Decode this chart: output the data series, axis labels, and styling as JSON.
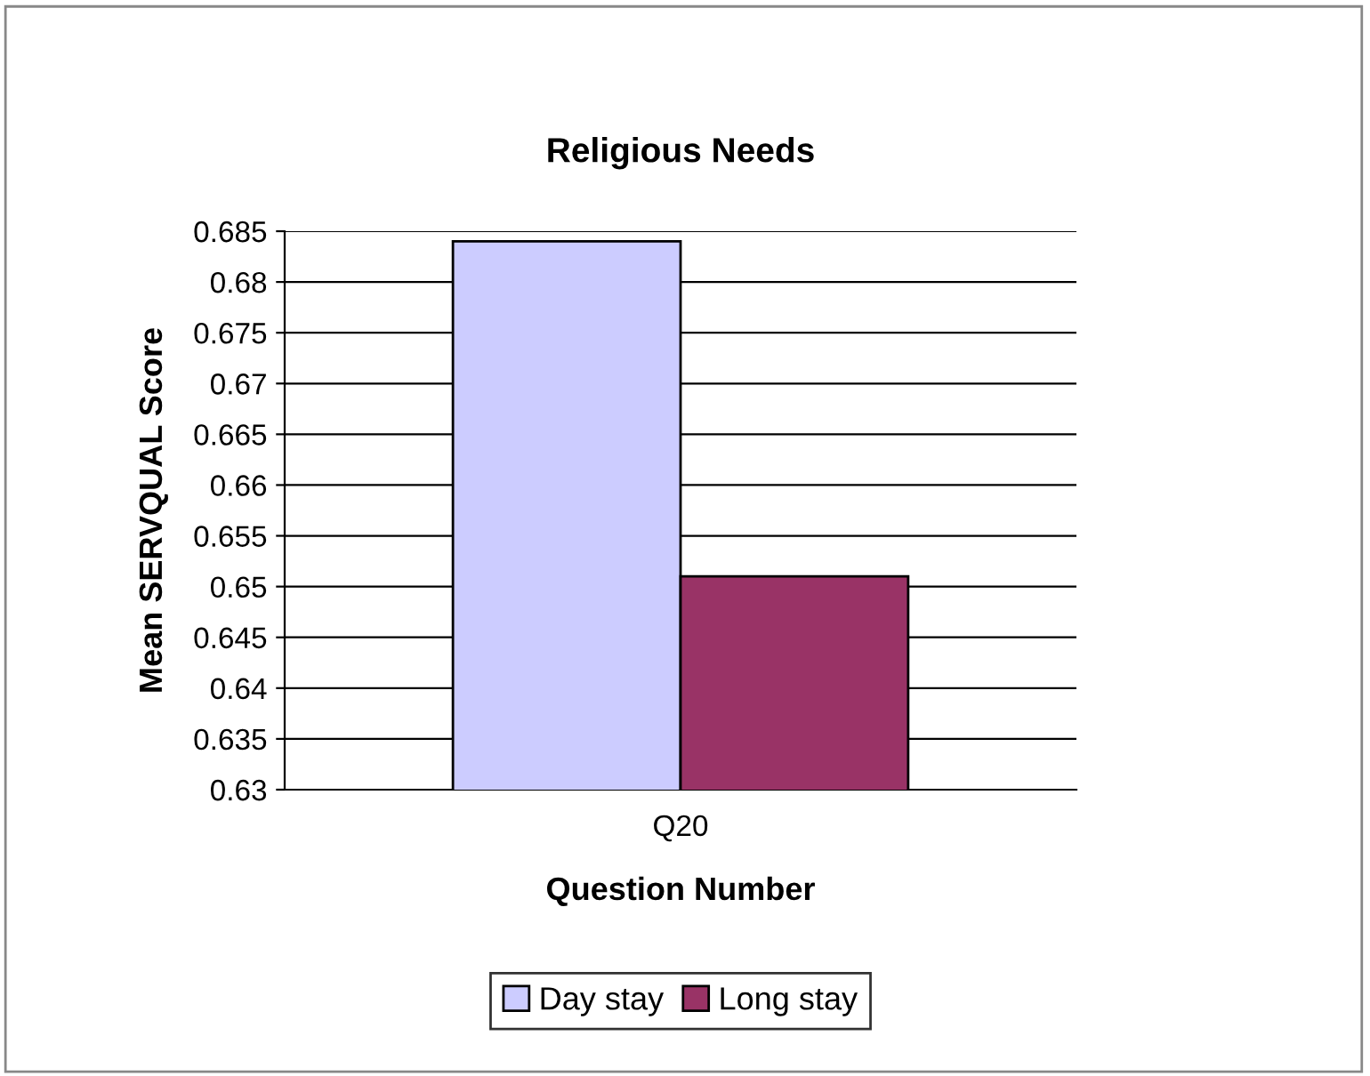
{
  "chart_data": {
    "type": "bar",
    "title": "Religious Needs",
    "xlabel": "Question Number",
    "ylabel": "Mean SERVQUAL Score",
    "categories": [
      "Q20"
    ],
    "series": [
      {
        "name": "Day stay",
        "color": "#ccccff",
        "values": [
          0.684
        ]
      },
      {
        "name": "Long stay",
        "color": "#993366",
        "values": [
          0.651
        ]
      }
    ],
    "ylim": [
      0.63,
      0.685
    ],
    "yticks": [
      0.63,
      0.635,
      0.64,
      0.645,
      0.65,
      0.655,
      0.66,
      0.665,
      0.67,
      0.675,
      0.68,
      0.685
    ],
    "grid": "y",
    "legend": "bottom"
  }
}
